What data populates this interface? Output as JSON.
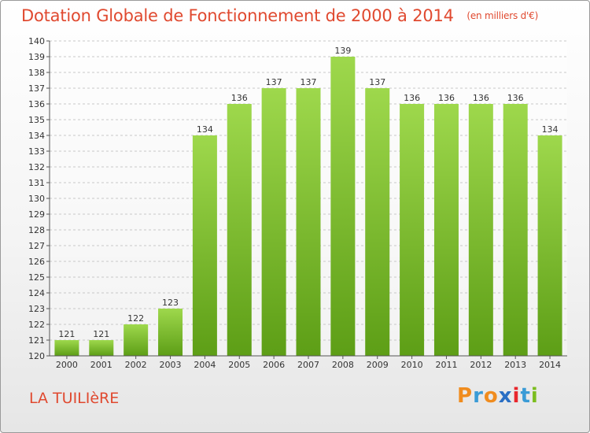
{
  "title": "Dotation Globale de Fonctionnement de 2000 à 2014",
  "unit": "(en milliers d'€)",
  "commune": "LA TUILIèRE",
  "logo": {
    "text": "Proxiti",
    "letters": [
      "P",
      "r",
      "o",
      "x",
      "i",
      "t",
      "i"
    ],
    "colors": [
      "#f08c1e",
      "#3a9bd6",
      "#f08c1e",
      "#2a6fc4",
      "#e8262c",
      "#3a9bd6",
      "#7cbd1f"
    ]
  },
  "colors": {
    "bar_light": "#9ed84c",
    "bar_dark": "#5d9e16",
    "title": "#e0492f"
  },
  "chart_data": {
    "type": "bar",
    "title": "Dotation Globale de Fonctionnement de 2000 à 2014",
    "categories": [
      "2000",
      "2001",
      "2002",
      "2003",
      "2004",
      "2005",
      "2006",
      "2007",
      "2008",
      "2009",
      "2010",
      "2011",
      "2012",
      "2013",
      "2014"
    ],
    "values": [
      121,
      121,
      122,
      123,
      134,
      136,
      137,
      137,
      139,
      137,
      136,
      136,
      136,
      136,
      134
    ],
    "ylim": [
      120,
      140
    ],
    "yticks": [
      120,
      121,
      122,
      123,
      124,
      125,
      126,
      127,
      128,
      129,
      130,
      131,
      132,
      133,
      134,
      135,
      136,
      137,
      138,
      139,
      140
    ],
    "xlabel": "",
    "ylabel": "",
    "grid": true
  }
}
